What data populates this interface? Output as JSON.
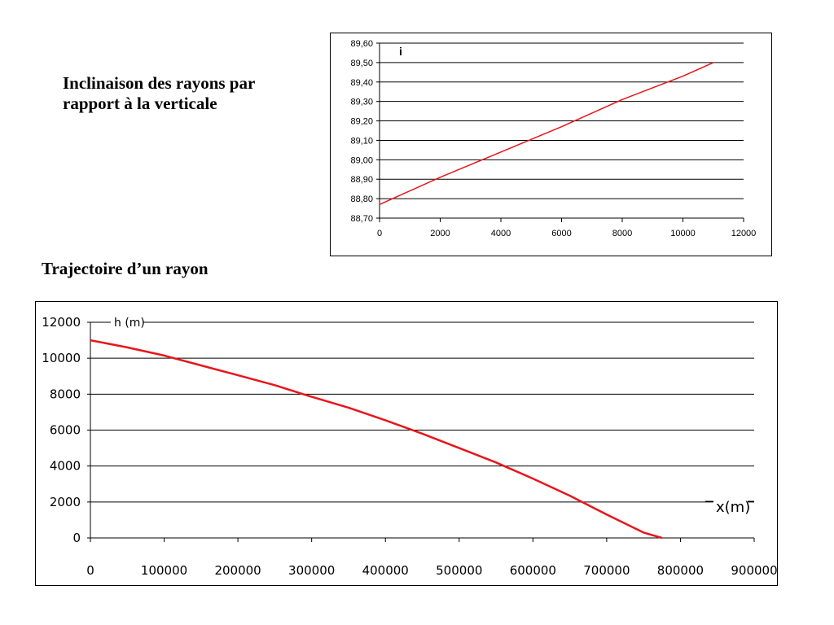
{
  "headings": {
    "inclinaison": "Inclinaison des rayons par rapport à la verticale",
    "trajectoire": "Trajectoire d’un rayon"
  },
  "colors": {
    "series": "#e8161b",
    "grid": "#000000",
    "frame": "#000000"
  },
  "chart_data": [
    {
      "type": "line",
      "title": "",
      "ylabel": "i",
      "xlabel": "",
      "xlim": [
        0,
        12000
      ],
      "ylim": [
        88.7,
        89.6
      ],
      "xticks": [
        0,
        2000,
        4000,
        6000,
        8000,
        10000,
        12000
      ],
      "xtick_labels": [
        "0",
        "2000",
        "4000",
        "6000",
        "8000",
        "10000",
        "12000"
      ],
      "yticks": [
        88.7,
        88.8,
        88.9,
        89.0,
        89.1,
        89.2,
        89.3,
        89.4,
        89.5,
        89.6
      ],
      "ytick_labels": [
        "88,70",
        "88,80",
        "88,90",
        "89,00",
        "89,10",
        "89,20",
        "89,30",
        "89,40",
        "89,50",
        "89,60"
      ],
      "grid": "horizontal",
      "series": [
        {
          "x": [
            0,
            2000,
            4000,
            6000,
            8000,
            10000,
            11000
          ],
          "y": [
            88.77,
            88.91,
            89.04,
            89.17,
            89.31,
            89.43,
            89.5
          ]
        }
      ]
    },
    {
      "type": "line",
      "title": "",
      "ylabel": "h (m)",
      "xlabel": "x(m)",
      "xlim": [
        0,
        900000
      ],
      "ylim": [
        0,
        12000
      ],
      "xticks": [
        0,
        100000,
        200000,
        300000,
        400000,
        500000,
        600000,
        700000,
        800000,
        900000
      ],
      "xtick_labels": [
        "0",
        "100000",
        "200000",
        "300000",
        "400000",
        "500000",
        "600000",
        "700000",
        "800000",
        "900000"
      ],
      "yticks": [
        0,
        2000,
        4000,
        6000,
        8000,
        10000,
        12000
      ],
      "ytick_labels": [
        "0",
        "2000",
        "4000",
        "6000",
        "8000",
        "10000",
        "12000"
      ],
      "grid": "horizontal",
      "series": [
        {
          "x": [
            0,
            50000,
            100000,
            150000,
            200000,
            250000,
            300000,
            350000,
            400000,
            450000,
            500000,
            550000,
            600000,
            650000,
            700000,
            750000,
            775000
          ],
          "y": [
            11000,
            10600,
            10150,
            9600,
            9050,
            8500,
            7850,
            7250,
            6550,
            5800,
            5000,
            4200,
            3300,
            2350,
            1300,
            300,
            0
          ]
        }
      ]
    }
  ]
}
